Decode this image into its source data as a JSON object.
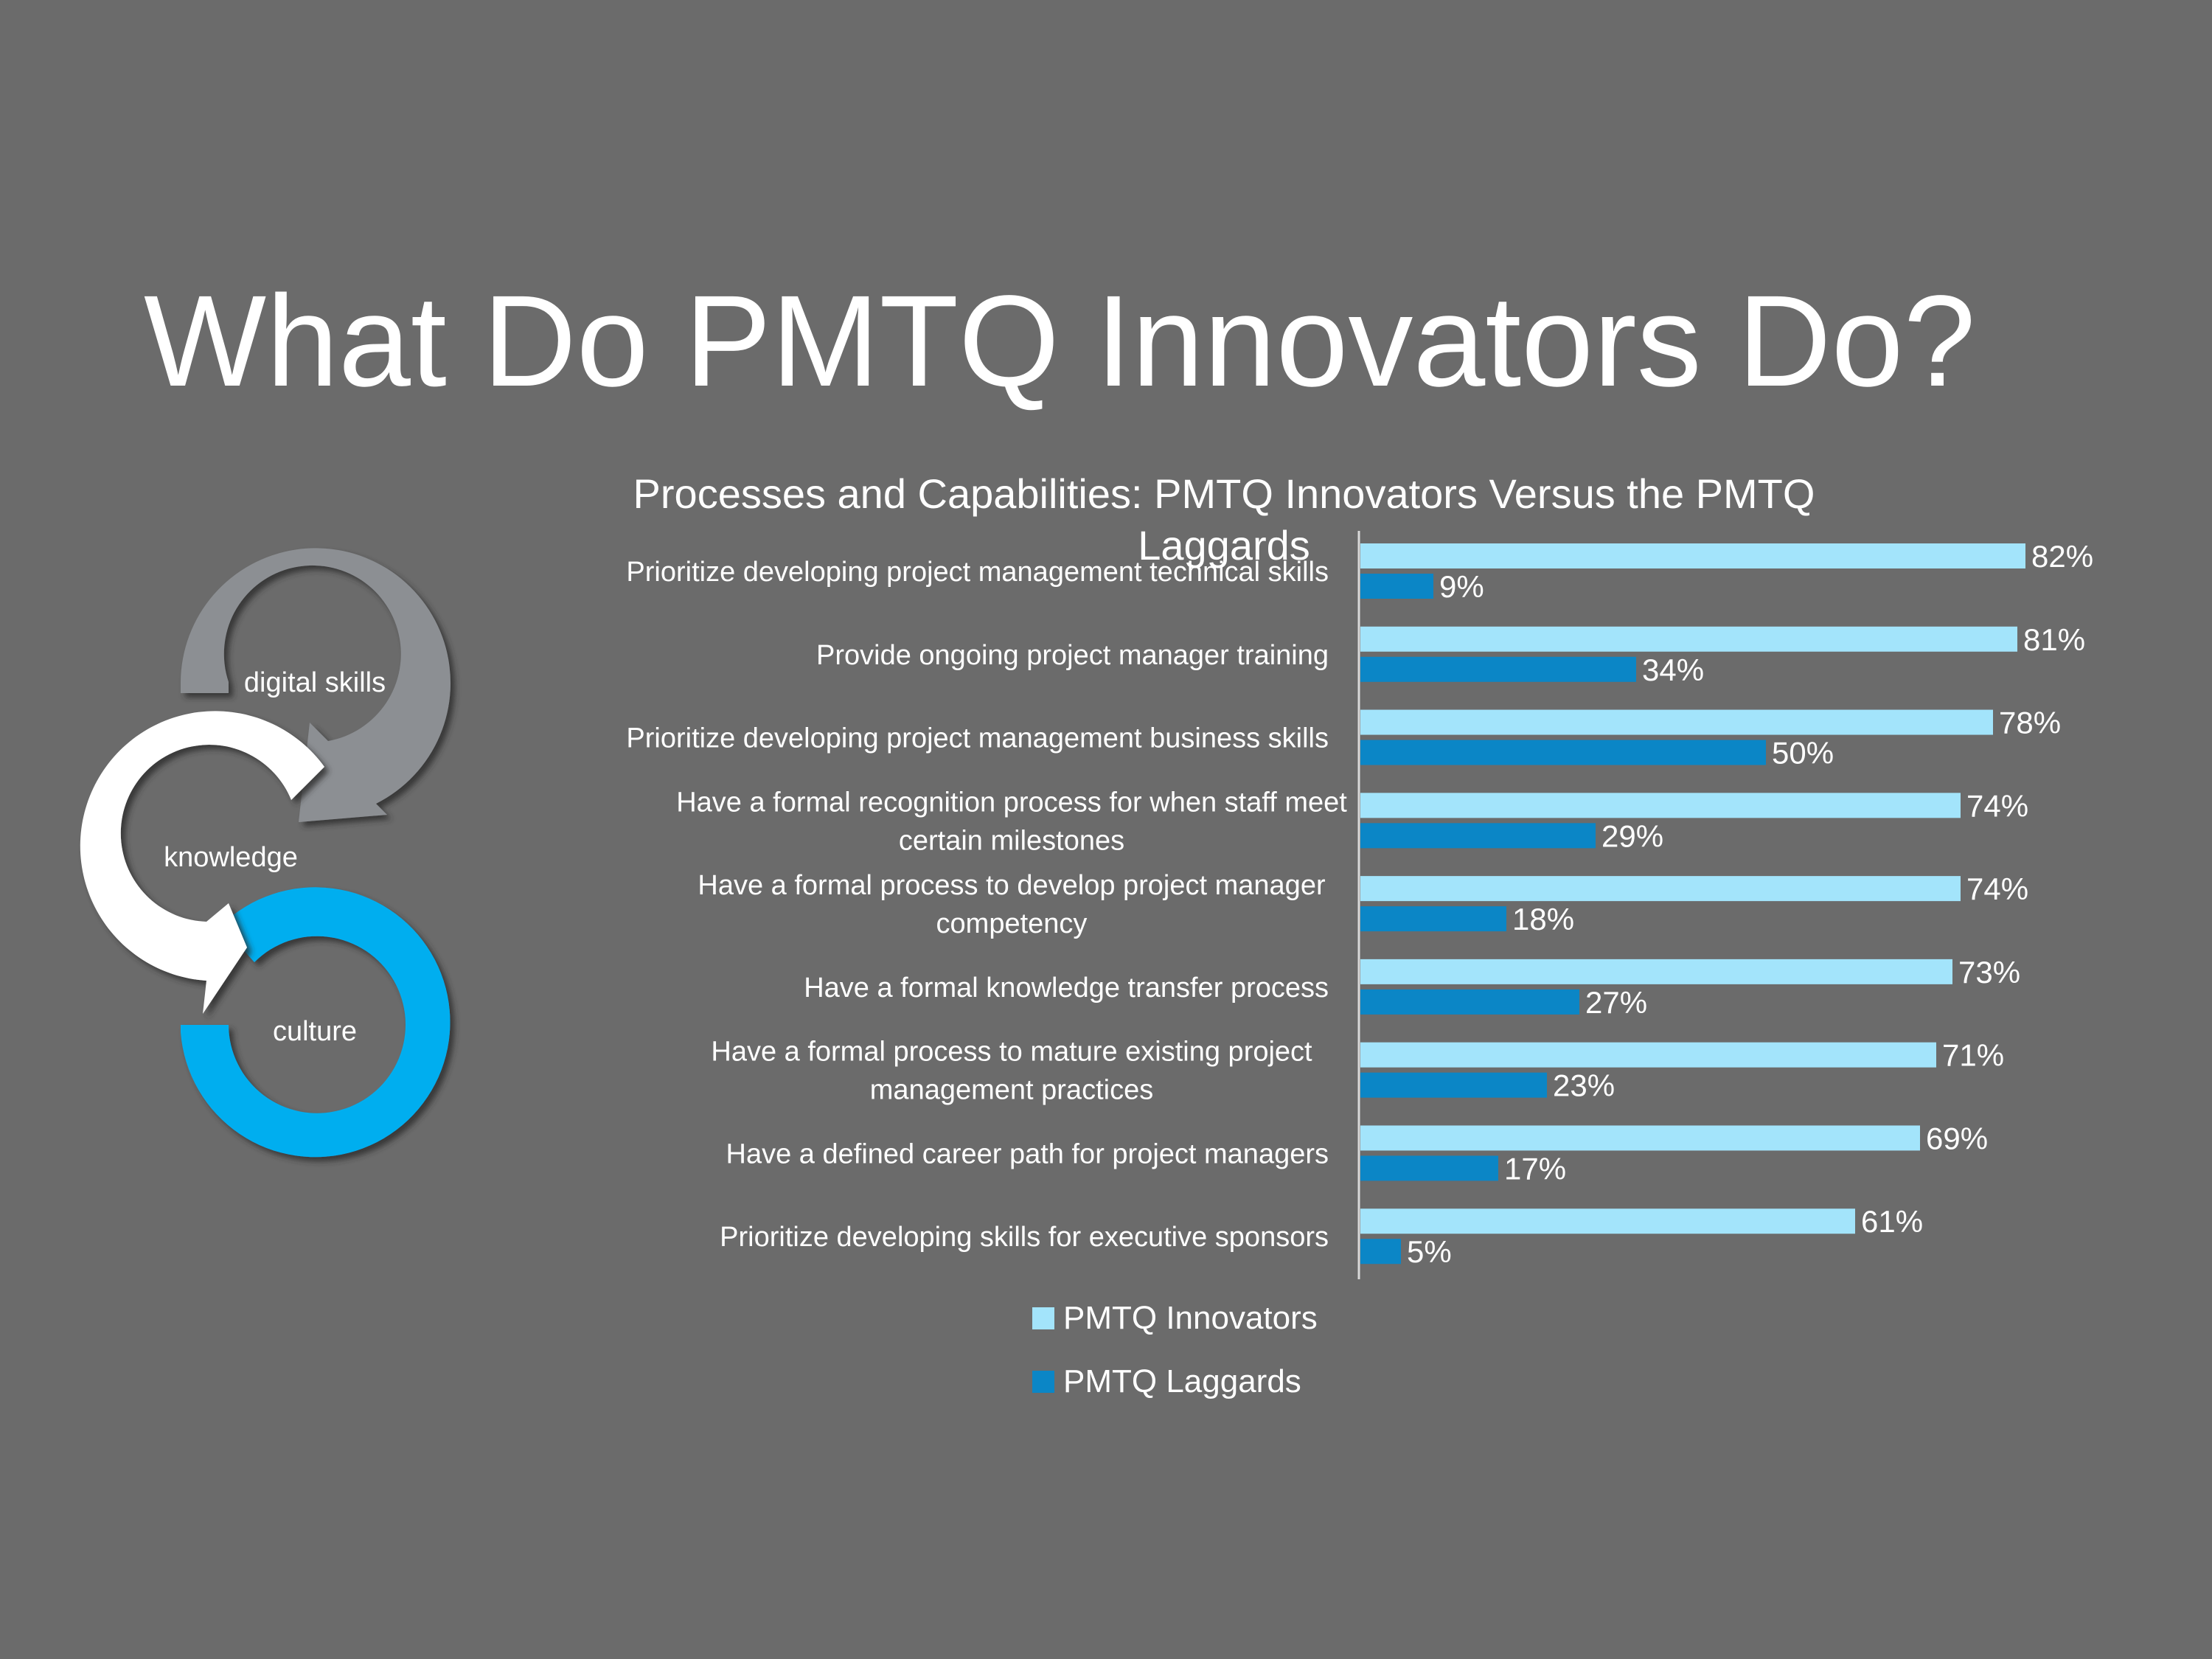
{
  "slide": {
    "title": "What Do PMTQ Innovators Do?"
  },
  "cycle": {
    "items": [
      {
        "label": "digital skills",
        "color": "#8c8f93"
      },
      {
        "label": "knowledge",
        "color": "#ffffff"
      },
      {
        "label": "culture",
        "color": "#00aeef"
      }
    ]
  },
  "colors": {
    "background": "#6b6b6b",
    "innovators": "#a3e4fb",
    "laggards": "#0b86c6"
  },
  "chart_data": {
    "type": "bar",
    "orientation": "horizontal",
    "title": "Processes and Capabilities: PMTQ Innovators Versus the PMTQ Laggards",
    "categories": [
      [
        "Prioritize developing project management technical skills"
      ],
      [
        "Provide ongoing project manager training"
      ],
      [
        "Prioritize developing project management business skills"
      ],
      [
        "Have a formal recognition process for when staff meet",
        "certain milestones"
      ],
      [
        "Have a formal process to develop project manager",
        "competency"
      ],
      [
        "Have a formal knowledge transfer process"
      ],
      [
        "Have a formal process to mature existing project",
        "management practices"
      ],
      [
        "Have a defined career path for project managers"
      ],
      [
        "Prioritize developing skills for executive sponsors"
      ]
    ],
    "series": [
      {
        "name": "PMTQ Innovators",
        "values": [
          82,
          81,
          78,
          74,
          74,
          73,
          71,
          69,
          61
        ],
        "labels": [
          "82%",
          "81%",
          "78%",
          "74%",
          "74%",
          "73%",
          "71%",
          "69%",
          "61%"
        ]
      },
      {
        "name": "PMTQ Laggards",
        "values": [
          9,
          34,
          50,
          29,
          18,
          27,
          23,
          17,
          5
        ],
        "labels": [
          "9%",
          "34%",
          "50%",
          "29%",
          "18%",
          "27%",
          "23%",
          "17%",
          "5%"
        ]
      }
    ],
    "xlim": [
      0,
      100
    ],
    "grid": false,
    "legend": "bottom"
  }
}
